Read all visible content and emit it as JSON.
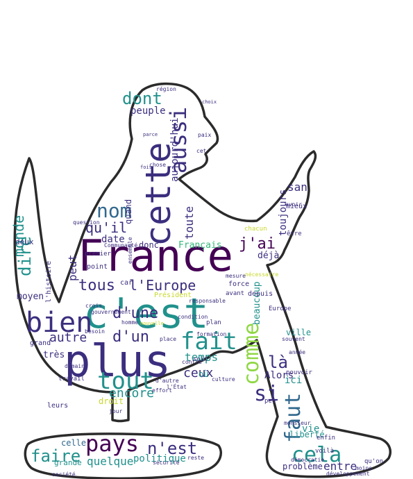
{
  "colors": {
    "background": "#ffffff",
    "outline": "#2b2b2b",
    "dark_purple": "#440154",
    "indigo": "#3b2e7e",
    "blue": "#31688e",
    "teal": "#21918c",
    "green": "#35b779",
    "light_green": "#8fd744",
    "yellow": "#c8d82a"
  },
  "words": [
    {
      "text": "France"
    },
    {
      "text": "c'est"
    },
    {
      "text": "plus"
    },
    {
      "text": "cette"
    },
    {
      "text": "bien"
    },
    {
      "text": "tout"
    },
    {
      "text": "pays"
    },
    {
      "text": "fait"
    },
    {
      "text": "comme"
    },
    {
      "text": "aussi"
    },
    {
      "text": "nom"
    },
    {
      "text": "dont"
    },
    {
      "text": "n'est"
    },
    {
      "text": "cela"
    },
    {
      "text": "faut"
    },
    {
      "text": "faire"
    },
    {
      "text": "si"
    },
    {
      "text": "tous"
    },
    {
      "text": "l'Europe"
    },
    {
      "text": "qu'il"
    },
    {
      "text": "d'une"
    },
    {
      "text": "d'un"
    },
    {
      "text": "dire"
    },
    {
      "text": "j'ai"
    },
    {
      "text": "toute"
    },
    {
      "text": "monde"
    },
    {
      "text": "autre"
    },
    {
      "text": "encore"
    },
    {
      "text": "temps"
    },
    {
      "text": "là"
    },
    {
      "text": "ceux"
    },
    {
      "text": "entre"
    },
    {
      "text": "aujourd'hui"
    },
    {
      "text": "san"
    },
    {
      "text": "toujours"
    },
    {
      "text": "peuple"
    },
    {
      "text": "date"
    },
    {
      "text": "donc"
    },
    {
      "text": "peut"
    },
    {
      "text": "quelque"
    },
    {
      "text": "politique"
    },
    {
      "text": "celle"
    },
    {
      "text": "vie"
    },
    {
      "text": "très"
    },
    {
      "text": "deux"
    },
    {
      "text": "moyen"
    },
    {
      "text": "Français"
    },
    {
      "text": "déjà"
    },
    {
      "text": "beaucoup"
    },
    {
      "text": "droit"
    },
    {
      "text": "quand"
    },
    {
      "text": "Alors"
    },
    {
      "text": "ici"
    },
    {
      "text": "où"
    },
    {
      "text": "liberté"
    },
    {
      "text": "problème"
    },
    {
      "text": "grande"
    },
    {
      "text": "ville"
    },
    {
      "text": "être"
    },
    {
      "text": "force"
    },
    {
      "text": "depuis"
    },
    {
      "text": "leurs"
    },
    {
      "text": "point"
    },
    {
      "text": "l'histoire"
    },
    {
      "text": "car"
    },
    {
      "text": "grand"
    },
    {
      "text": "mieux"
    },
    {
      "text": "région"
    },
    {
      "text": "chose"
    },
    {
      "text": "homme"
    },
    {
      "text": "jour"
    },
    {
      "text": "enfin"
    },
    {
      "text": "peu"
    },
    {
      "text": "Europe"
    },
    {
      "text": "avant"
    },
    {
      "text": "plan"
    },
    {
      "text": "travail"
    },
    {
      "text": "voilà"
    },
    {
      "text": "société"
    },
    {
      "text": "reste"
    },
    {
      "text": "soit"
    },
    {
      "text": "premier"
    },
    {
      "text": "ensemble"
    },
    {
      "text": "Président"
    },
    {
      "text": "mesure"
    },
    {
      "text": "gouvernement"
    },
    {
      "text": "besoin"
    },
    {
      "text": "effort"
    },
    {
      "text": "chacun"
    },
    {
      "text": "pouvoir"
    },
    {
      "text": "souvent"
    },
    {
      "text": "développement"
    },
    {
      "text": "année"
    },
    {
      "text": "monsieur"
    },
    {
      "text": "paix"
    },
    {
      "text": "culture"
    },
    {
      "text": "contre"
    },
    {
      "text": "l'État"
    },
    {
      "text": "moins"
    },
    {
      "text": "qu'on"
    },
    {
      "text": "condition"
    },
    {
      "text": "formation"
    },
    {
      "text": "avoir"
    },
    {
      "text": "cet"
    },
    {
      "text": "parce"
    },
    {
      "text": "choix"
    },
    {
      "text": "fois"
    },
    {
      "text": "crois"
    },
    {
      "text": "place"
    },
    {
      "text": "domaine"
    },
    {
      "text": "Communauté"
    },
    {
      "text": "question"
    },
    {
      "text": "d'autre"
    },
    {
      "text": "sécurité"
    },
    {
      "text": "nécessaire"
    },
    {
      "text": "démocratie"
    },
    {
      "text": "nouvelle"
    },
    {
      "text": "responsable"
    },
    {
      "text": "mêmes"
    },
    {
      "text": "l'autre"
    }
  ]
}
